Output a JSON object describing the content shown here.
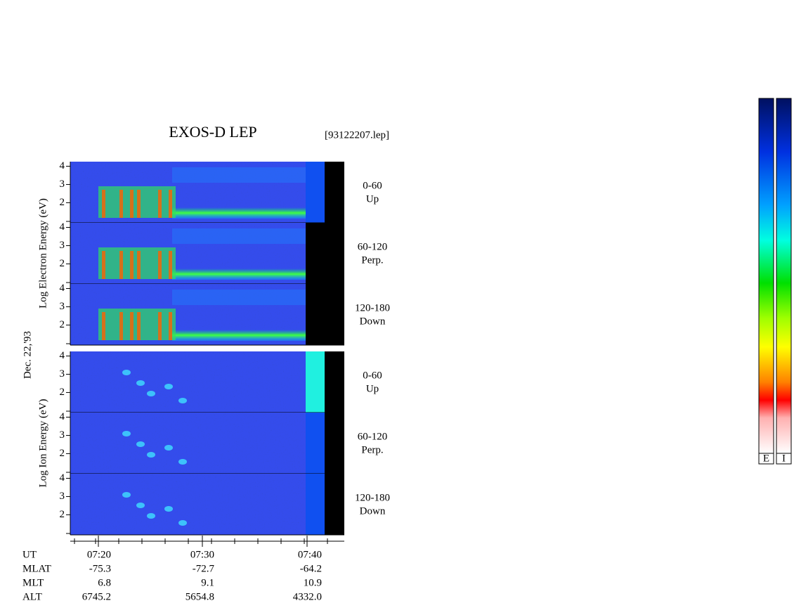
{
  "chart_data": {
    "type": "spectrogram",
    "title": "EXOS-D LEP",
    "file": "[93122207.lep]",
    "date": "Dec. 22,'93",
    "yticks": [
      2,
      3,
      4
    ],
    "ylim": [
      0.9,
      4.25
    ],
    "groups": [
      {
        "ylabel": "Log  Electron  Energy (eV)",
        "panels": [
          {
            "angle": "0-60",
            "direction": "Up"
          },
          {
            "angle": "60-120",
            "direction": "Perp."
          },
          {
            "angle": "120-180",
            "direction": "Down"
          }
        ]
      },
      {
        "ylabel": "Log  Ion  Energy (eV)",
        "panels": [
          {
            "angle": "0-60",
            "direction": "Up"
          },
          {
            "angle": "60-120",
            "direction": "Perp."
          },
          {
            "angle": "120-180",
            "direction": "Down"
          }
        ]
      }
    ],
    "orbit": [
      {
        "name": "UT",
        "values": [
          "07:20",
          "07:30",
          "07:40"
        ]
      },
      {
        "name": "MLAT",
        "values": [
          "-75.3",
          "-72.7",
          "-64.2"
        ]
      },
      {
        "name": "MLT",
        "values": [
          "6.8",
          "9.1",
          "10.9"
        ]
      },
      {
        "name": "ALT",
        "values": [
          "6745.2",
          "5654.8",
          "4332.0"
        ]
      }
    ],
    "colorbars": [
      "E",
      "I"
    ]
  }
}
